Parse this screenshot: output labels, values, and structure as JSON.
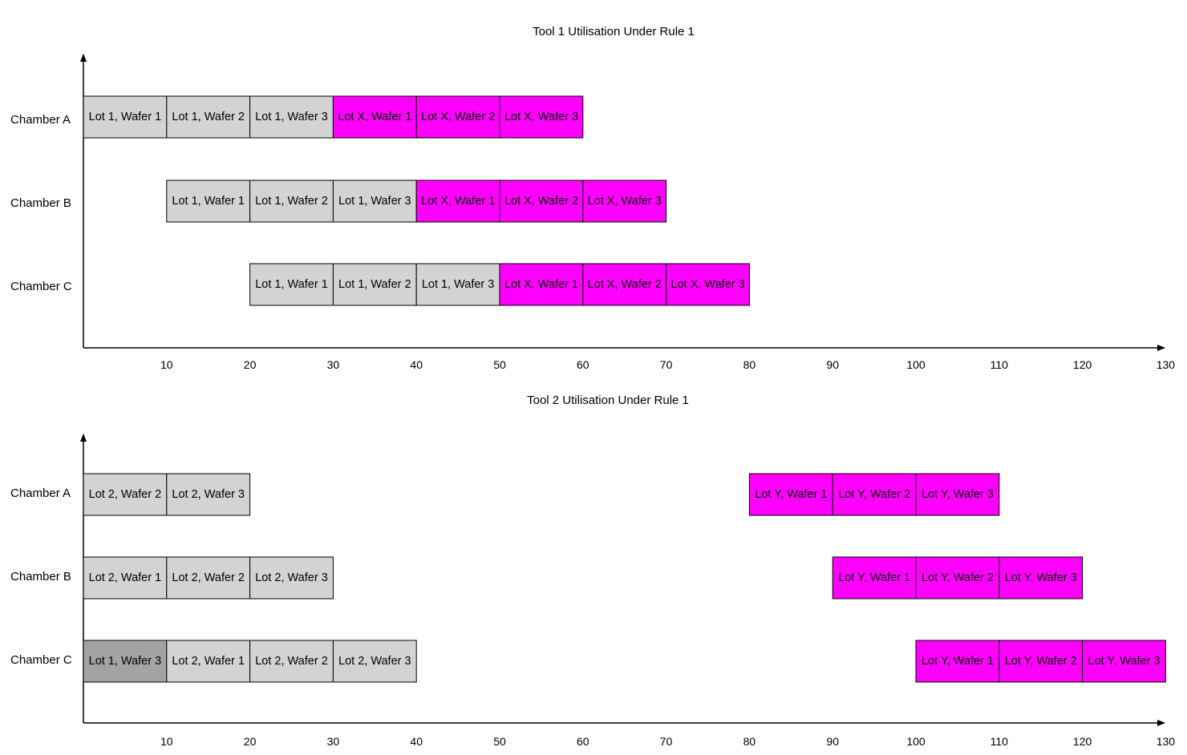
{
  "colors": {
    "lot_gray": "#d3d3d3",
    "lot_dark_gray": "#a3a3a3",
    "lot_magenta": "#ff00ff",
    "axis": "#000000"
  },
  "chart_data": [
    {
      "type": "gantt",
      "title": "Tool 1 Utilisation Under Rule 1",
      "categories": [
        "Chamber A",
        "Chamber B",
        "Chamber C"
      ],
      "x_ticks": [
        10,
        20,
        30,
        40,
        50,
        60,
        70,
        80,
        90,
        100,
        110,
        120,
        130
      ],
      "xlim": [
        0,
        130
      ],
      "tasks": [
        {
          "row": "Chamber A",
          "label": "Lot 1, Wafer 1",
          "start": 0,
          "end": 10,
          "color": "#d3d3d3"
        },
        {
          "row": "Chamber A",
          "label": "Lot 1, Wafer 2",
          "start": 10,
          "end": 20,
          "color": "#d3d3d3"
        },
        {
          "row": "Chamber A",
          "label": "Lot 1, Wafer 3",
          "start": 20,
          "end": 30,
          "color": "#d3d3d3"
        },
        {
          "row": "Chamber A",
          "label": "Lot X, Wafer 1",
          "start": 30,
          "end": 40,
          "color": "#ff00ff"
        },
        {
          "row": "Chamber A",
          "label": "Lot X, Wafer 2",
          "start": 40,
          "end": 50,
          "color": "#ff00ff"
        },
        {
          "row": "Chamber A",
          "label": "Lot X, Wafer 3",
          "start": 50,
          "end": 60,
          "color": "#ff00ff"
        },
        {
          "row": "Chamber B",
          "label": "Lot 1, Wafer 1",
          "start": 10,
          "end": 20,
          "color": "#d3d3d3"
        },
        {
          "row": "Chamber B",
          "label": "Lot 1, Wafer 2",
          "start": 20,
          "end": 30,
          "color": "#d3d3d3"
        },
        {
          "row": "Chamber B",
          "label": "Lot 1, Wafer 3",
          "start": 30,
          "end": 40,
          "color": "#d3d3d3"
        },
        {
          "row": "Chamber B",
          "label": "Lot X, Wafer 1",
          "start": 40,
          "end": 50,
          "color": "#ff00ff"
        },
        {
          "row": "Chamber B",
          "label": "Lot X, Wafer 2",
          "start": 50,
          "end": 60,
          "color": "#ff00ff"
        },
        {
          "row": "Chamber B",
          "label": "Lot X, Wafer 3",
          "start": 60,
          "end": 70,
          "color": "#ff00ff"
        },
        {
          "row": "Chamber C",
          "label": "Lot 1, Wafer 1",
          "start": 20,
          "end": 30,
          "color": "#d3d3d3"
        },
        {
          "row": "Chamber C",
          "label": "Lot 1, Wafer 2",
          "start": 30,
          "end": 40,
          "color": "#d3d3d3"
        },
        {
          "row": "Chamber C",
          "label": "Lot 1, Wafer 3",
          "start": 40,
          "end": 50,
          "color": "#d3d3d3"
        },
        {
          "row": "Chamber C",
          "label": "Lot X, Wafer 1",
          "start": 50,
          "end": 60,
          "color": "#ff00ff"
        },
        {
          "row": "Chamber C",
          "label": "Lot X, Wafer 2",
          "start": 60,
          "end": 70,
          "color": "#ff00ff"
        },
        {
          "row": "Chamber C",
          "label": "Lot X, Wafer 3",
          "start": 70,
          "end": 80,
          "color": "#ff00ff"
        }
      ]
    },
    {
      "type": "gantt",
      "title": "Tool 2 Utilisation Under Rule 1",
      "categories": [
        "Chamber A",
        "Chamber B",
        "Chamber C"
      ],
      "x_ticks": [
        10,
        20,
        30,
        40,
        50,
        60,
        70,
        80,
        90,
        100,
        110,
        120,
        130
      ],
      "xlim": [
        0,
        130
      ],
      "tasks": [
        {
          "row": "Chamber A",
          "label": "Lot 2, Wafer 2",
          "start": 0,
          "end": 10,
          "color": "#d3d3d3"
        },
        {
          "row": "Chamber A",
          "label": "Lot 2, Wafer 3",
          "start": 10,
          "end": 20,
          "color": "#d3d3d3"
        },
        {
          "row": "Chamber A",
          "label": "Lot Y, Wafer 1",
          "start": 80,
          "end": 90,
          "color": "#ff00ff"
        },
        {
          "row": "Chamber A",
          "label": "Lot Y, Wafer 2",
          "start": 90,
          "end": 100,
          "color": "#ff00ff"
        },
        {
          "row": "Chamber A",
          "label": "Lot Y, Wafer 3",
          "start": 100,
          "end": 110,
          "color": "#ff00ff"
        },
        {
          "row": "Chamber B",
          "label": "Lot 2, Wafer 1",
          "start": 0,
          "end": 10,
          "color": "#d3d3d3"
        },
        {
          "row": "Chamber B",
          "label": "Lot 2, Wafer 2",
          "start": 10,
          "end": 20,
          "color": "#d3d3d3"
        },
        {
          "row": "Chamber B",
          "label": "Lot 2, Wafer 3",
          "start": 20,
          "end": 30,
          "color": "#d3d3d3"
        },
        {
          "row": "Chamber B",
          "label": "Lot Y, Wafer 1",
          "start": 90,
          "end": 100,
          "color": "#ff00ff"
        },
        {
          "row": "Chamber B",
          "label": "Lot Y, Wafer 2",
          "start": 100,
          "end": 110,
          "color": "#ff00ff"
        },
        {
          "row": "Chamber B",
          "label": "Lot Y, Wafer 3",
          "start": 110,
          "end": 120,
          "color": "#ff00ff"
        },
        {
          "row": "Chamber C",
          "label": "Lot 1, Wafer 3",
          "start": 0,
          "end": 10,
          "color": "#a3a3a3"
        },
        {
          "row": "Chamber C",
          "label": "Lot 2, Wafer 1",
          "start": 10,
          "end": 20,
          "color": "#d3d3d3"
        },
        {
          "row": "Chamber C",
          "label": "Lot 2, Wafer 2",
          "start": 20,
          "end": 30,
          "color": "#d3d3d3"
        },
        {
          "row": "Chamber C",
          "label": "Lot 2, Wafer 3",
          "start": 30,
          "end": 40,
          "color": "#d3d3d3"
        },
        {
          "row": "Chamber C",
          "label": "Lot Y, Wafer 1",
          "start": 100,
          "end": 110,
          "color": "#ff00ff"
        },
        {
          "row": "Chamber C",
          "label": "Lot Y, Wafer 2",
          "start": 110,
          "end": 120,
          "color": "#ff00ff"
        },
        {
          "row": "Chamber C",
          "label": "Lot Y, Wafer 3",
          "start": 120,
          "end": 130,
          "color": "#ff00ff"
        }
      ]
    }
  ]
}
